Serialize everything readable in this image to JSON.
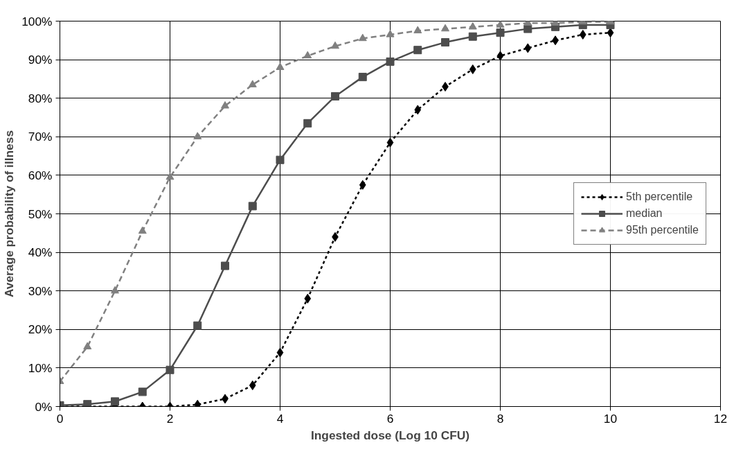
{
  "chart_data": {
    "type": "line",
    "xlabel": "Ingested dose (Log 10 CFU)",
    "ylabel": "Average probability of illness",
    "x": [
      0,
      0.5,
      1,
      1.5,
      2,
      2.5,
      3,
      3.5,
      4,
      4.5,
      5,
      5.5,
      6,
      6.5,
      7,
      7.5,
      8,
      8.5,
      9,
      9.5,
      10
    ],
    "series": [
      {
        "name": "5th percentile",
        "color": "#000000",
        "marker": "diamond",
        "line_style": "dotted",
        "values": [
          0,
          0,
          0,
          0,
          0,
          0.5,
          2,
          5.5,
          14,
          28,
          44,
          57.5,
          68.5,
          77,
          83,
          87.5,
          91,
          93,
          95,
          96.5,
          97
        ]
      },
      {
        "name": "median",
        "color": "#4d4d4d",
        "marker": "square",
        "line_style": "solid",
        "values": [
          0.3,
          0.6,
          1.3,
          3.8,
          9.5,
          21,
          36.5,
          52,
          64,
          73.5,
          80.5,
          85.5,
          89.5,
          92.5,
          94.5,
          96,
          97,
          98,
          98.5,
          99,
          99
        ]
      },
      {
        "name": "95th percentile",
        "color": "#808080",
        "marker": "triangle",
        "line_style": "dashed",
        "values": [
          6.5,
          15.5,
          30,
          45.5,
          59.5,
          70,
          78,
          83.5,
          88,
          91,
          93.5,
          95.5,
          96.5,
          97.5,
          98,
          98.5,
          99,
          99.5,
          99.5,
          99.8,
          99.8
        ]
      }
    ],
    "xlim": [
      0,
      12
    ],
    "xticks": [
      0,
      2,
      4,
      6,
      8,
      10,
      12
    ],
    "ylim": [
      0,
      100
    ],
    "yticks": [
      {
        "value": 0,
        "label": "0%"
      },
      {
        "value": 10,
        "label": "10%"
      },
      {
        "value": 20,
        "label": "20%"
      },
      {
        "value": 30,
        "label": "30%"
      },
      {
        "value": 40,
        "label": "40%"
      },
      {
        "value": 50,
        "label": "50%"
      },
      {
        "value": 60,
        "label": "60%"
      },
      {
        "value": 70,
        "label": "70%"
      },
      {
        "value": 80,
        "label": "80%"
      },
      {
        "value": 90,
        "label": "90%"
      },
      {
        "value": 100,
        "label": "100%"
      }
    ],
    "grid": true,
    "legend": "right"
  }
}
